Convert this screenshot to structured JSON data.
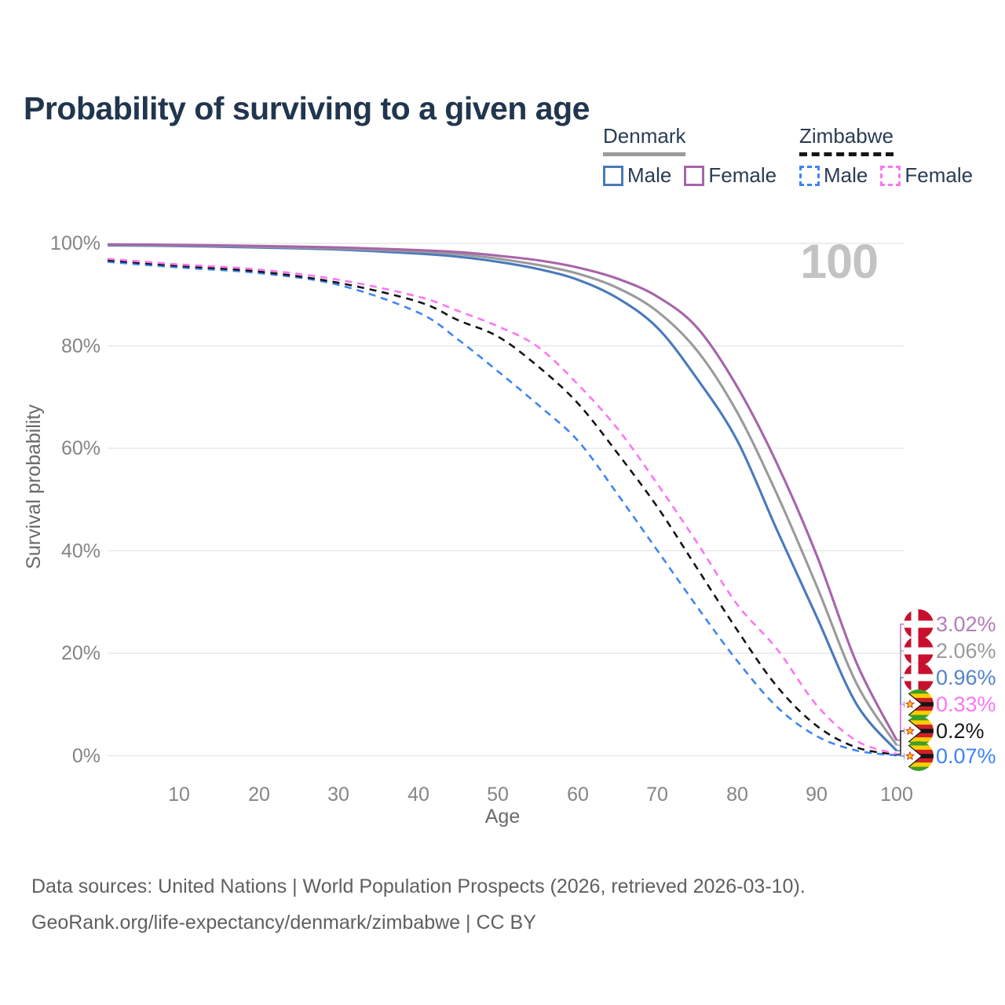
{
  "title": "Probability of surviving to a given age",
  "legend": {
    "groups": [
      {
        "name": "Denmark",
        "rule_style": "solid",
        "rule_color": "#9a9a9a",
        "items": [
          {
            "label": "Male",
            "color": "#4879bd",
            "dashed": false
          },
          {
            "label": "Female",
            "color": "#a665a9",
            "dashed": false
          }
        ]
      },
      {
        "name": "Zimbabwe",
        "rule_style": "dashed",
        "rule_color": "#151515",
        "items": [
          {
            "label": "Male",
            "color": "#3d85f4",
            "dashed": true
          },
          {
            "label": "Female",
            "color": "#fb76f2",
            "dashed": true
          }
        ]
      }
    ]
  },
  "axes": {
    "y_title": "Survival probability",
    "x_title": "Age",
    "y_ticks": [
      "100%",
      "80%",
      "60%",
      "40%",
      "20%",
      "0%"
    ],
    "x_ticks": [
      "10",
      "20",
      "30",
      "40",
      "50",
      "60",
      "70",
      "80",
      "90",
      "100"
    ]
  },
  "chart_data": {
    "type": "line",
    "title": "Probability of surviving to a given age",
    "xlabel": "Age",
    "ylabel": "Survival probability",
    "xlim": [
      1,
      100
    ],
    "ylim": [
      0,
      100
    ],
    "grid": "horizontal",
    "annotation": "100",
    "x_ticks": [
      10,
      20,
      30,
      40,
      50,
      60,
      70,
      80,
      90,
      100
    ],
    "y_ticks_pct": [
      100,
      80,
      60,
      40,
      20,
      0
    ],
    "ages": [
      1,
      10,
      20,
      30,
      40,
      45,
      50,
      55,
      60,
      65,
      70,
      75,
      80,
      85,
      90,
      95,
      100
    ],
    "series": [
      {
        "name": "Zimbabwe Male",
        "country": "Zimbabwe",
        "sex": "Male",
        "color": "#3d85f4",
        "dashed": true,
        "end_value_pct": 0.07,
        "values": [
          96.4,
          95.3,
          94.2,
          91.9,
          86.5,
          81.2,
          75.0,
          68.5,
          61.5,
          51.0,
          40.0,
          29.0,
          18.5,
          9.5,
          3.8,
          1.0,
          0.07
        ]
      },
      {
        "name": "Zimbabwe",
        "country": "Zimbabwe",
        "sex": "Both",
        "color": "#151515",
        "dashed": true,
        "end_value_pct": 0.2,
        "values": [
          96.7,
          95.6,
          94.5,
          92.3,
          88.6,
          85.0,
          81.8,
          76.0,
          68.8,
          59.0,
          48.5,
          36.5,
          24.5,
          13.5,
          5.8,
          1.6,
          0.2
        ]
      },
      {
        "name": "Zimbabwe Female",
        "country": "Zimbabwe",
        "sex": "Female",
        "color": "#fb76f2",
        "dashed": true,
        "end_value_pct": 0.33,
        "values": [
          97.0,
          95.9,
          94.9,
          92.9,
          89.6,
          86.8,
          83.8,
          79.8,
          72.5,
          63.8,
          53.0,
          41.5,
          29.5,
          20.8,
          9.8,
          2.9,
          0.33
        ]
      },
      {
        "name": "Denmark Male",
        "country": "Denmark",
        "sex": "Male",
        "color": "#4879bd",
        "dashed": false,
        "end_value_pct": 0.96,
        "values": [
          99.6,
          99.5,
          99.2,
          98.8,
          98.0,
          97.4,
          96.4,
          95.0,
          92.9,
          89.3,
          83.5,
          73.5,
          61.5,
          44.0,
          27.0,
          10.0,
          0.96
        ]
      },
      {
        "name": "Denmark",
        "country": "Denmark",
        "sex": "Both",
        "color": "#9a9a9a",
        "dashed": false,
        "end_value_pct": 2.06,
        "values": [
          99.7,
          99.6,
          99.35,
          99.0,
          98.4,
          97.9,
          97.0,
          95.8,
          94.1,
          91.3,
          86.7,
          79.0,
          67.0,
          51.0,
          33.0,
          14.0,
          2.06
        ]
      },
      {
        "name": "Denmark Female",
        "country": "Denmark",
        "sex": "Female",
        "color": "#a665a9",
        "dashed": false,
        "end_value_pct": 3.02,
        "values": [
          99.8,
          99.7,
          99.5,
          99.2,
          98.7,
          98.3,
          97.6,
          96.7,
          95.3,
          93.1,
          89.6,
          83.5,
          72.0,
          57.0,
          39.0,
          18.0,
          3.02
        ]
      }
    ],
    "end_labels": [
      {
        "text": "3.02%",
        "color": "#b47cb8",
        "flag": "dk",
        "series": "Denmark Female"
      },
      {
        "text": "2.06%",
        "color": "#9a9a9a",
        "flag": "dk",
        "series": "Denmark"
      },
      {
        "text": "0.96%",
        "color": "#5584c6",
        "flag": "dk",
        "series": "Denmark Male"
      },
      {
        "text": "0.33%",
        "color": "#fb76f2",
        "flag": "zw",
        "series": "Zimbabwe Female"
      },
      {
        "text": "0.2%",
        "color": "#1a1a1a",
        "flag": "zw",
        "series": "Zimbabwe"
      },
      {
        "text": "0.07%",
        "color": "#3d85f4",
        "flag": "zw",
        "series": "Zimbabwe Male"
      }
    ],
    "legend_position": "top-right"
  },
  "footer": {
    "line1": "Data sources: United Nations | World Population Prospects (2026, retrieved 2026-03-10).",
    "line2": "GeoRank.org/life-expectancy/denmark/zimbabwe | CC BY"
  }
}
